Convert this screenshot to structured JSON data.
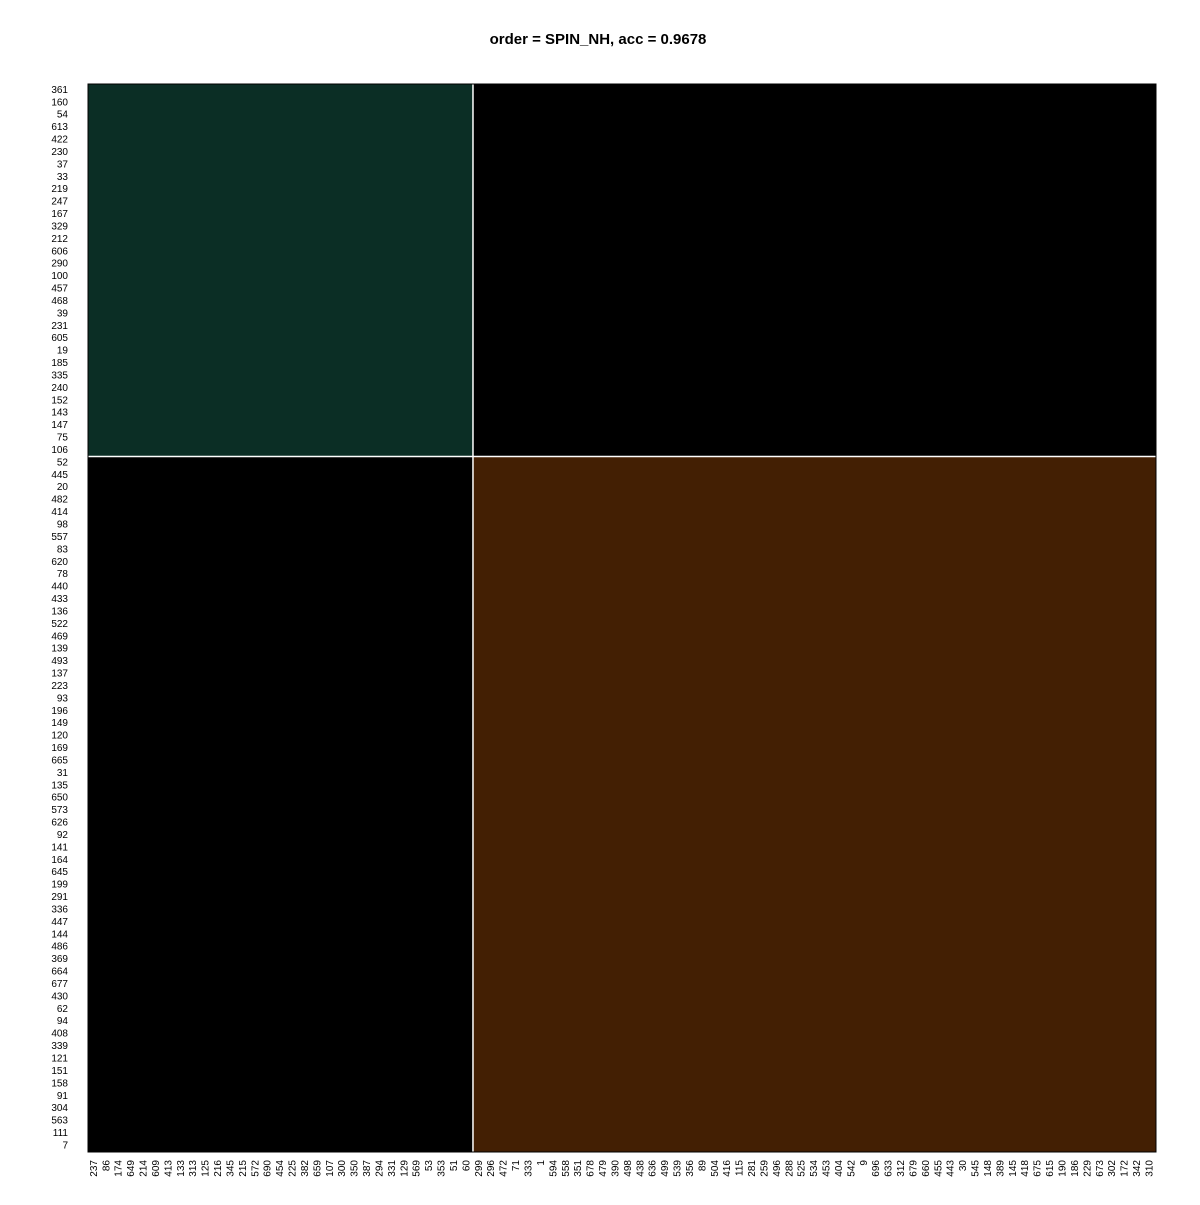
{
  "chart_data": {
    "type": "dissplot",
    "title": "order = SPIN_NH, acc = 0.9678",
    "row_groups": [
      [
        "361",
        "160",
        "54",
        "613",
        "422",
        "230",
        "37",
        "33",
        "219",
        "247",
        "167",
        "329",
        "212",
        "606",
        "290",
        "100",
        "457",
        "468",
        "39",
        "231",
        "605",
        "19",
        "185",
        "335",
        "240",
        "152",
        "143",
        "147",
        "75",
        "106"
      ],
      [
        "52",
        "445",
        "20",
        "482",
        "414",
        "98",
        "557",
        "83",
        "620",
        "78",
        "440",
        "433",
        "136",
        "522",
        "469",
        "139",
        "493",
        "137",
        "223",
        "93",
        "196",
        "149",
        "120",
        "169",
        "665",
        "31",
        "135",
        "650",
        "573",
        "626",
        "92",
        "141",
        "164",
        "645",
        "199",
        "291",
        "336",
        "447",
        "144",
        "486",
        "369",
        "664",
        "677",
        "430",
        "62",
        "94",
        "408",
        "339",
        "121",
        "151",
        "158",
        "91",
        "304",
        "563",
        "111",
        "7"
      ]
    ],
    "col_groups": [
      [
        "237",
        "86",
        "174",
        "649",
        "214",
        "609",
        "413",
        "133",
        "313",
        "125",
        "216",
        "345",
        "215",
        "572",
        "690",
        "454",
        "225",
        "382",
        "659",
        "107",
        "300",
        "350",
        "387",
        "294",
        "331",
        "129",
        "569",
        "53",
        "353",
        "51",
        "60"
      ],
      [
        "299",
        "296",
        "472",
        "71",
        "333",
        "1",
        "594",
        "558",
        "351",
        "678",
        "479",
        "390",
        "498",
        "438",
        "636",
        "499",
        "539",
        "356",
        "89",
        "504",
        "416",
        "115",
        "281",
        "259",
        "496",
        "288",
        "525",
        "534",
        "453",
        "404",
        "542",
        "9",
        "696",
        "633",
        "312",
        "679",
        "660",
        "455",
        "443",
        "30",
        "545",
        "148",
        "389",
        "145",
        "418",
        "675",
        "615",
        "190",
        "186",
        "229",
        "673",
        "302",
        "172",
        "342",
        "310"
      ]
    ],
    "colors": [
      "#0b2e25",
      "#431f03"
    ],
    "between_color": "#000000"
  }
}
